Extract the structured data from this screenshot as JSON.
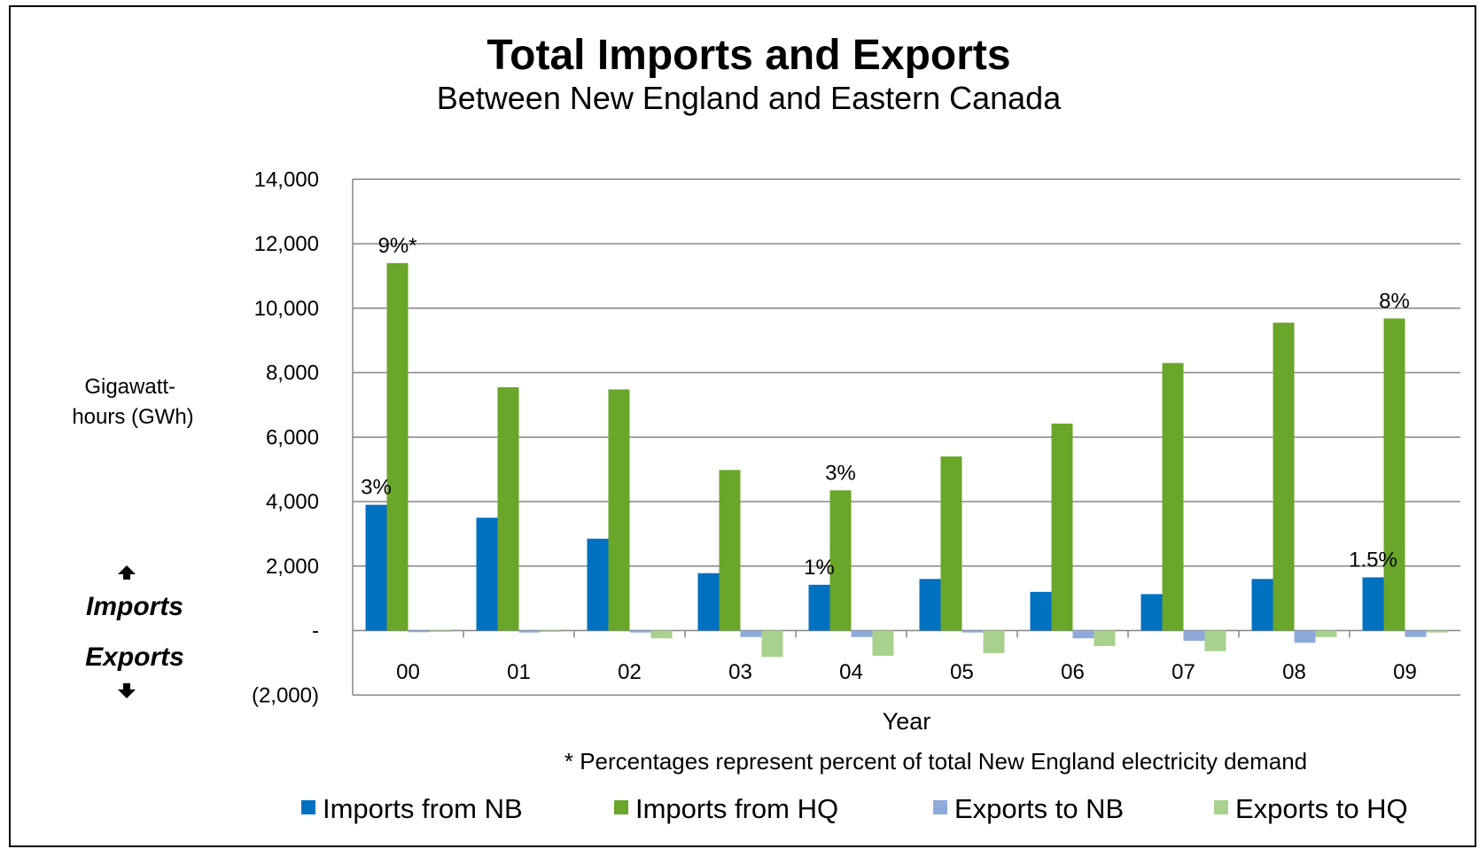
{
  "chart_data": {
    "type": "bar",
    "title": "Total Imports and Exports",
    "subtitle": "Between New England and Eastern Canada",
    "xlabel": "Year",
    "ylabel": "Gigawatt-hours (GWh)",
    "ylabel_lines": [
      "Gigawatt-",
      "hours (GWh)"
    ],
    "ylim": [
      -2000,
      14000
    ],
    "yticks": [
      14000,
      12000,
      10000,
      8000,
      6000,
      4000,
      2000,
      0,
      -2000
    ],
    "ytick_labels": [
      "14,000",
      "12,000",
      "10,000",
      "8,000",
      "6,000",
      "4,000",
      "2,000",
      "-",
      "(2,000)"
    ],
    "grid": true,
    "legend_position": "bottom",
    "categories": [
      "00",
      "01",
      "02",
      "03",
      "04",
      "05",
      "06",
      "07",
      "08",
      "09"
    ],
    "series": [
      {
        "name": "Imports from NB",
        "color": "#0070C0",
        "values": [
          3900,
          3500,
          2850,
          1780,
          1420,
          1600,
          1200,
          1130,
          1600,
          1650
        ]
      },
      {
        "name": "Imports from HQ",
        "color": "#6AA629",
        "values": [
          11400,
          7550,
          7480,
          4980,
          4350,
          5400,
          6420,
          8300,
          9550,
          9680
        ]
      },
      {
        "name": "Exports to NB",
        "color": "#8EAADB",
        "values": [
          -50,
          -60,
          -60,
          -200,
          -200,
          -60,
          -240,
          -320,
          -380,
          -200
        ]
      },
      {
        "name": "Exports to HQ",
        "color": "#A9D18E",
        "values": [
          -40,
          -40,
          -240,
          -820,
          -780,
          -700,
          -480,
          -640,
          -200,
          -60
        ]
      }
    ],
    "annotations": [
      {
        "text": "3%",
        "category": "00",
        "series": "Imports from NB"
      },
      {
        "text": "9%*",
        "category": "00",
        "series": "Imports from HQ"
      },
      {
        "text": "3%",
        "category": "04",
        "series": "Imports from HQ"
      },
      {
        "text": "1%",
        "category": "04",
        "series": "Imports from NB"
      },
      {
        "text": "8%",
        "category": "09",
        "series": "Imports from HQ"
      },
      {
        "text": "1.5%",
        "category": "09",
        "series": "Imports from NB"
      }
    ],
    "side_labels": {
      "imports": "Imports",
      "exports": "Exports"
    },
    "footnote": "* Percentages represent percent of total New England electricity demand"
  }
}
